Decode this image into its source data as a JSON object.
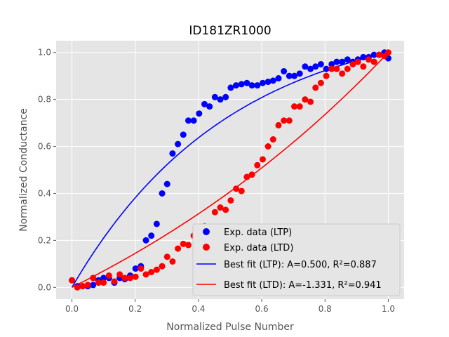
{
  "chart_data": {
    "type": "scatter",
    "title": "ID181ZR1000",
    "xlabel": "Normalized Pulse Number",
    "ylabel": "Normalized Conductance",
    "xlim": [
      -0.05,
      1.05
    ],
    "ylim": [
      -0.05,
      1.05
    ],
    "xticks": [
      "0.0",
      "0.2",
      "0.4",
      "0.6",
      "0.8",
      "1.0"
    ],
    "yticks": [
      "0.0",
      "0.2",
      "0.4",
      "0.6",
      "0.8",
      "1.0"
    ],
    "grid": true,
    "legend_position": "bottom-right",
    "colors": {
      "background": "#e5e5e5",
      "grid": "#ffffff",
      "ltp": "#0000ff",
      "ltd": "#ff0000"
    },
    "series": [
      {
        "name": "Exp. data (LTP)",
        "kind": "scatter",
        "color": "#0000ff",
        "points": [
          [
            0.0,
            0.03
          ],
          [
            0.017,
            0.005
          ],
          [
            0.034,
            0.005
          ],
          [
            0.05,
            0.005
          ],
          [
            0.067,
            0.01
          ],
          [
            0.084,
            0.03
          ],
          [
            0.1,
            0.04
          ],
          [
            0.117,
            0.04
          ],
          [
            0.134,
            0.02
          ],
          [
            0.151,
            0.04
          ],
          [
            0.167,
            0.035
          ],
          [
            0.184,
            0.05
          ],
          [
            0.201,
            0.08
          ],
          [
            0.218,
            0.09
          ],
          [
            0.234,
            0.2
          ],
          [
            0.251,
            0.22
          ],
          [
            0.268,
            0.27
          ],
          [
            0.285,
            0.4
          ],
          [
            0.301,
            0.44
          ],
          [
            0.318,
            0.57
          ],
          [
            0.335,
            0.61
          ],
          [
            0.352,
            0.65
          ],
          [
            0.368,
            0.71
          ],
          [
            0.385,
            0.71
          ],
          [
            0.402,
            0.74
          ],
          [
            0.419,
            0.78
          ],
          [
            0.435,
            0.77
          ],
          [
            0.452,
            0.81
          ],
          [
            0.469,
            0.8
          ],
          [
            0.486,
            0.81
          ],
          [
            0.502,
            0.85
          ],
          [
            0.519,
            0.86
          ],
          [
            0.536,
            0.865
          ],
          [
            0.553,
            0.87
          ],
          [
            0.569,
            0.86
          ],
          [
            0.586,
            0.86
          ],
          [
            0.603,
            0.87
          ],
          [
            0.62,
            0.875
          ],
          [
            0.636,
            0.88
          ],
          [
            0.653,
            0.89
          ],
          [
            0.67,
            0.92
          ],
          [
            0.687,
            0.9
          ],
          [
            0.703,
            0.9
          ],
          [
            0.72,
            0.91
          ],
          [
            0.737,
            0.94
          ],
          [
            0.754,
            0.93
          ],
          [
            0.77,
            0.94
          ],
          [
            0.787,
            0.95
          ],
          [
            0.804,
            0.93
          ],
          [
            0.821,
            0.95
          ],
          [
            0.837,
            0.96
          ],
          [
            0.854,
            0.96
          ],
          [
            0.871,
            0.97
          ],
          [
            0.888,
            0.96
          ],
          [
            0.904,
            0.97
          ],
          [
            0.921,
            0.98
          ],
          [
            0.938,
            0.98
          ],
          [
            0.955,
            0.99
          ],
          [
            0.971,
            0.99
          ],
          [
            0.988,
            1.0
          ],
          [
            1.0,
            0.975
          ]
        ]
      },
      {
        "name": "Exp. data (LTD)",
        "kind": "scatter",
        "color": "#ff0000",
        "points": [
          [
            0.0,
            0.03
          ],
          [
            0.017,
            0.0
          ],
          [
            0.034,
            0.005
          ],
          [
            0.05,
            0.01
          ],
          [
            0.067,
            0.04
          ],
          [
            0.084,
            0.02
          ],
          [
            0.1,
            0.02
          ],
          [
            0.117,
            0.05
          ],
          [
            0.134,
            0.025
          ],
          [
            0.151,
            0.055
          ],
          [
            0.167,
            0.04
          ],
          [
            0.184,
            0.04
          ],
          [
            0.201,
            0.045
          ],
          [
            0.218,
            0.08
          ],
          [
            0.234,
            0.055
          ],
          [
            0.251,
            0.065
          ],
          [
            0.268,
            0.075
          ],
          [
            0.285,
            0.09
          ],
          [
            0.301,
            0.13
          ],
          [
            0.318,
            0.11
          ],
          [
            0.335,
            0.165
          ],
          [
            0.352,
            0.185
          ],
          [
            0.368,
            0.18
          ],
          [
            0.385,
            0.22
          ],
          [
            0.402,
            0.24
          ],
          [
            0.419,
            0.26
          ],
          [
            0.435,
            0.245
          ],
          [
            0.452,
            0.32
          ],
          [
            0.469,
            0.34
          ],
          [
            0.486,
            0.33
          ],
          [
            0.502,
            0.37
          ],
          [
            0.519,
            0.42
          ],
          [
            0.536,
            0.41
          ],
          [
            0.553,
            0.47
          ],
          [
            0.569,
            0.48
          ],
          [
            0.586,
            0.52
          ],
          [
            0.603,
            0.545
          ],
          [
            0.62,
            0.6
          ],
          [
            0.636,
            0.63
          ],
          [
            0.653,
            0.69
          ],
          [
            0.67,
            0.71
          ],
          [
            0.687,
            0.71
          ],
          [
            0.703,
            0.77
          ],
          [
            0.72,
            0.77
          ],
          [
            0.737,
            0.8
          ],
          [
            0.754,
            0.79
          ],
          [
            0.77,
            0.85
          ],
          [
            0.787,
            0.87
          ],
          [
            0.804,
            0.9
          ],
          [
            0.821,
            0.93
          ],
          [
            0.837,
            0.93
          ],
          [
            0.854,
            0.91
          ],
          [
            0.871,
            0.93
          ],
          [
            0.888,
            0.95
          ],
          [
            0.904,
            0.96
          ],
          [
            0.921,
            0.94
          ],
          [
            0.938,
            0.97
          ],
          [
            0.955,
            0.96
          ],
          [
            0.971,
            0.99
          ],
          [
            0.988,
            0.985
          ],
          [
            1.0,
            1.0
          ]
        ]
      },
      {
        "name": "Best fit (LTP): A=0.500, R²=0.887",
        "kind": "line",
        "color": "#0000ff",
        "A": 0.5
      },
      {
        "name": "Best fit (LTD): A=-1.331, R²=0.941",
        "kind": "line",
        "color": "#ff0000",
        "A": -1.331
      }
    ]
  }
}
